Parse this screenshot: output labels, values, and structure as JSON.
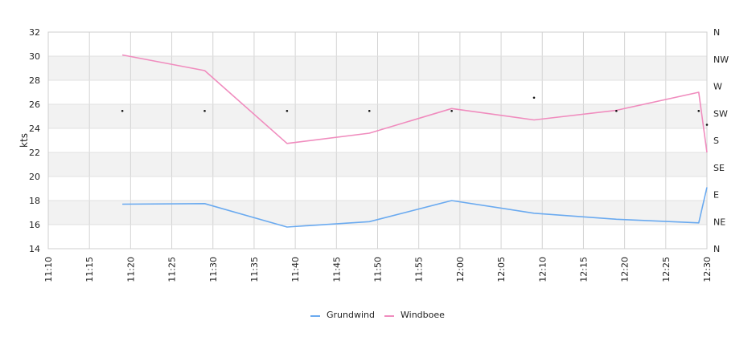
{
  "chart_data": {
    "type": "line",
    "title": "",
    "xlabel": "",
    "ylabel": "kts",
    "x": [
      "11:10",
      "11:15",
      "11:20",
      "11:25",
      "11:30",
      "11:35",
      "11:40",
      "11:45",
      "11:50",
      "11:55",
      "12:00",
      "12:05",
      "12:10",
      "12:15",
      "12:20",
      "12:25",
      "12:30"
    ],
    "ylim": [
      14,
      32
    ],
    "yticks": [
      14,
      16,
      18,
      20,
      22,
      24,
      26,
      28,
      30,
      32
    ],
    "y2_ticks": [
      "N",
      "NE",
      "E",
      "SE",
      "S",
      "SW",
      "W",
      "NW",
      "N"
    ],
    "grid": true,
    "legend": "bottom-center",
    "series": [
      {
        "name": "Grundwind",
        "color": "#6aaaf0",
        "points": [
          [
            "11:19",
            17.7
          ],
          [
            "11:29",
            17.75
          ],
          [
            "11:39",
            15.8
          ],
          [
            "11:49",
            16.25
          ],
          [
            "11:59",
            18.0
          ],
          [
            "12:09",
            16.95
          ],
          [
            "12:19",
            16.45
          ],
          [
            "12:29",
            16.15
          ],
          [
            "12:30",
            19.1
          ]
        ]
      },
      {
        "name": "Windboee",
        "color": "#f08cbe",
        "points": [
          [
            "11:19",
            30.1
          ],
          [
            "11:29",
            28.8
          ],
          [
            "11:39",
            22.75
          ],
          [
            "11:49",
            23.6
          ],
          [
            "11:59",
            25.65
          ],
          [
            "12:09",
            24.7
          ],
          [
            "12:19",
            25.5
          ],
          [
            "12:29",
            27.0
          ],
          [
            "12:30",
            22.0
          ]
        ]
      }
    ],
    "direction_markers": [
      [
        "11:19",
        25.45
      ],
      [
        "11:29",
        25.45
      ],
      [
        "11:39",
        25.45
      ],
      [
        "11:49",
        25.45
      ],
      [
        "11:59",
        25.45
      ],
      [
        "12:09",
        26.55
      ],
      [
        "12:19",
        25.45
      ],
      [
        "12:29",
        25.45
      ],
      [
        "12:30",
        24.3
      ]
    ]
  }
}
